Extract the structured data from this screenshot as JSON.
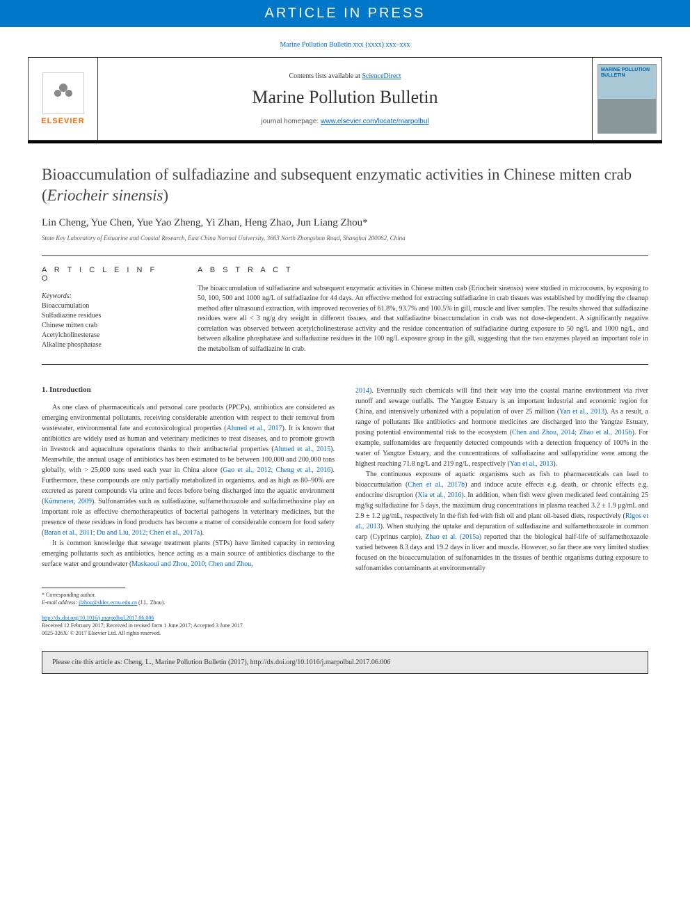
{
  "banner": "ARTICLE IN PRESS",
  "top_citation": "Marine Pollution Bulletin xxx (xxxx) xxx–xxx",
  "header": {
    "elsevier": "ELSEVIER",
    "contents_prefix": "Contents lists available at ",
    "contents_link": "ScienceDirect",
    "journal": "Marine Pollution Bulletin",
    "homepage_prefix": "journal homepage: ",
    "homepage_link": "www.elsevier.com/locate/marpolbul",
    "cover_title": "MARINE POLLUTION BULLETIN"
  },
  "article": {
    "title": "Bioaccumulation of sulfadiazine and subsequent enzymatic activities in Chinese mitten crab (Eriocheir sinensis)",
    "authors": "Lin Cheng, Yue Chen, Yue Yao Zheng, Yi Zhan, Heng Zhao, Jun Liang Zhou",
    "corr_mark": "*",
    "affiliation": "State Key Laboratory of Estuarine and Coastal Research, East China Normal University, 3663 North Zhongshan Road, Shanghai 200062, China"
  },
  "info": {
    "heading": "A R T I C L E   I N F O",
    "keywords_label": "Keywords:",
    "keywords": [
      "Bioaccumulation",
      "Sulfadiazine residues",
      "Chinese mitten crab",
      "Acetylcholinesterase",
      "Alkaline phosphatase"
    ]
  },
  "abstract": {
    "heading": "A B S T R A C T",
    "text": "The bioaccumulation of sulfadiazine and subsequent enzymatic activities in Chinese mitten crab (Eriocheir sinensis) were studied in microcosms, by exposing to 50, 100, 500 and 1000 ng/L of sulfadiazine for 44 days. An effective method for extracting sulfadiazine in crab tissues was established by modifying the cleanup method after ultrasound extraction, with improved recoveries of 61.8%, 93.7% and 100.5% in gill, muscle and liver samples. The results showed that sulfadiazine residues were all < 3 ng/g dry weight in different tissues, and that sulfadiazine bioaccumulation in crab was not dose-dependent. A significantly negative correlation was observed between acetylcholinesterase activity and the residue concentration of sulfadiazine during exposure to 50 ng/L and 1000 ng/L, and between alkaline phosphatase and sulfadiazine residues in the 100 ng/L exposure group in the gill, suggesting that the two enzymes played an important role in the metabolism of sulfadiazine in crab."
  },
  "intro": {
    "heading": "1. Introduction",
    "p1_a": "As one class of pharmaceuticals and personal care products (PPCPs), antibiotics are considered as emerging environmental pollutants, receiving considerable attention with respect to their removal from wastewater, environmental fate and ecotoxicological properties (",
    "p1_r1": "Ahmed et al., 2017",
    "p1_b": "). It is known that antibiotics are widely used as human and veterinary medicines to treat diseases, and to promote growth in livestock and aquaculture operations thanks to their antibacterial properties (",
    "p1_r2": "Ahmed et al., 2015",
    "p1_c": "). Meanwhile, the annual usage of antibiotics has been estimated to be between 100,000 and 200,000 tons globally, with > 25,000 tons used each year in China alone (",
    "p1_r3": "Gao et al., 2012; Cheng et al., 2016",
    "p1_d": "). Furthermore, these compounds are only partially metabolized in organisms, and as high as 80–90% are excreted as parent compounds via urine and feces before being discharged into the aquatic environment (",
    "p1_r4": "Kümmerer, 2009",
    "p1_e": "). Sulfonamides such as sulfadiazine, sulfamethoxazole and sulfadimethoxine play an important role as effective chemotherapeutics of bacterial pathogens in veterinary medicines, but the presence of these residues in food products has become a matter of considerable concern for food safety (",
    "p1_r5": "Baran et al., 2011; Du and Liu, 2012; Chen et al., 2017a",
    "p1_f": ").",
    "p2_a": "It is common knowledge that sewage treatment plants (STPs) have limited capacity in removing emerging pollutants such as antibiotics, hence acting as a main source of antibiotics discharge to the surface water and groundwater (",
    "p2_r1": "Maskaoui and Zhou, 2010; Chen and Zhou, ",
    "p3_r0": "2014",
    "p3_a": "). Eventually such chemicals will find their way into the coastal marine environment via river runoff and sewage outfalls. The Yangtze Estuary is an important industrial and economic region for China, and intensively urbanized with a population of over 25 million (",
    "p3_r1": "Yan et al., 2013",
    "p3_b": "). As a result, a range of pollutants like antibiotics and hormone medicines are discharged into the Yangtze Estuary, posing potential environmental risk to the ecosystem (",
    "p3_r2": "Chen and Zhou, 2014; Zhao et al., 2015b",
    "p3_c": "). For example, sulfonamides are frequently detected compounds with a detection frequency of 100% in the water of Yangtze Estuary, and the concentrations of sulfadiazine and sulfapyridine were among the highest reaching 71.8 ng/L and 219 ng/L, respectively (",
    "p3_r3": "Yan et al., 2013",
    "p3_d": ").",
    "p4_a": "The continuous exposure of aquatic organisms such as fish to pharmaceuticals can lead to bioaccumulation (",
    "p4_r1": "Chen et al., 2017b",
    "p4_b": ") and induce acute effects e.g. death, or chronic effects e.g. endocrine disruption (",
    "p4_r2": "Xia et al., 2016",
    "p4_c": "). In addition, when fish were given medicated feed containing 25 mg/kg sulfadiazine for 5 days, the maximum drug concentrations in plasma reached 3.2 ± 1.9 μg/mL and 2.9 ± 1.2 μg/mL, respectively in the fish fed with fish oil and plant oil-based diets, respectively (",
    "p4_r3": "Rigos et al., 2013",
    "p4_d": "). When studying the uptake and depuration of sulfadiazine and sulfamethoxazole in common carp (Cyprinus carpio), ",
    "p4_r4": "Zhao et al. (2015a)",
    "p4_e": " reported that the biological half-life of sulfamethoxazole varied between 8.3 days and 19.2 days in liver and muscle. However, so far there are very limited studies focused on the bioaccumulation of sulfonamides in the tissues of benthic organisms during exposure to sulfonamides contaminants at environmentally"
  },
  "footnotes": {
    "corr": "* Corresponding author.",
    "email_label": "E-mail address: ",
    "email": "jlzhou@sklec.ecnu.edu.cn",
    "email_suffix": " (J.L. Zhou)."
  },
  "doi": {
    "link": "http://dx.doi.org/10.1016/j.marpolbul.2017.06.006",
    "received": "Received 12 February 2017; Received in revised form 1 June 2017; Accepted 3 June 2017",
    "copyright": "0025-326X/ © 2017 Elsevier Ltd. All rights reserved."
  },
  "citebox": "Please cite this article as: Cheng, L., Marine Pollution Bulletin (2017), http://dx.doi.org/10.1016/j.marpolbul.2017.06.006"
}
